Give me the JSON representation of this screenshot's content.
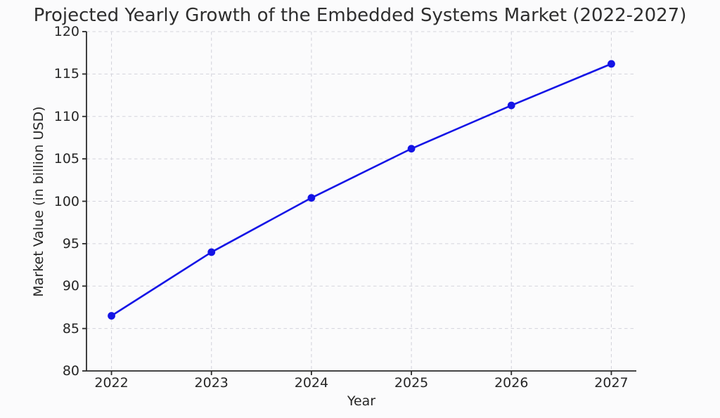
{
  "page": {
    "background": "#fbfbfc"
  },
  "colors": {
    "grid": "#d4d4dc",
    "axis": "#2b2b2b",
    "text": "#262626",
    "title": "#2e2e2e",
    "line": "#1414e6"
  },
  "chart_data": {
    "type": "line",
    "title": "Projected Yearly Growth of the Embedded Systems Market (2022-2027)",
    "xlabel": "Year",
    "ylabel": "Market Value (in billion USD)",
    "x": [
      2022,
      2023,
      2024,
      2025,
      2026,
      2027
    ],
    "values": [
      86.5,
      94.0,
      100.4,
      106.2,
      111.3,
      116.2
    ],
    "xticks": [
      2022,
      2023,
      2024,
      2025,
      2026,
      2027
    ],
    "xtick_labels": [
      "2022",
      "2023",
      "2024",
      "2025",
      "2026",
      "2027"
    ],
    "yticks": [
      80,
      85,
      90,
      95,
      100,
      105,
      110,
      115,
      120
    ],
    "ytick_labels": [
      "80",
      "85",
      "90",
      "95",
      "100",
      "105",
      "110",
      "115",
      "120"
    ],
    "xlim": [
      2021.75,
      2027.25
    ],
    "ylim": [
      80,
      120
    ],
    "grid": true,
    "grid_style": "dashed",
    "legend_position": "none",
    "line_color": "#1414e6",
    "marker": "circle",
    "marker_color": "#1414e6"
  }
}
